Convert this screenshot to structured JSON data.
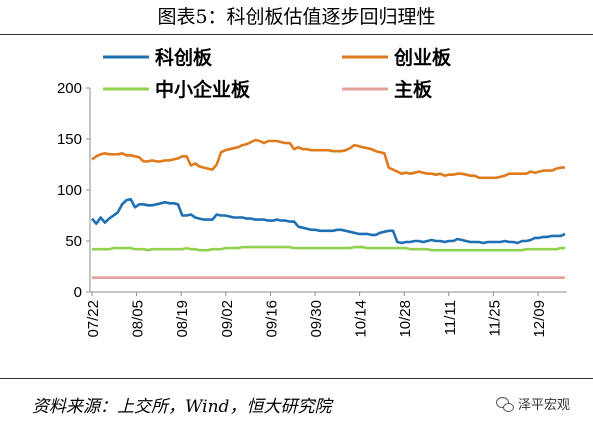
{
  "header": {
    "title": "图表5：科创板估值逐步回归理性"
  },
  "footer": {
    "source": "资料来源：上交所，Wind，恒大研究院",
    "brand": "泽平宏观",
    "brand_icon": "wechat-icon"
  },
  "chart_data": {
    "type": "line",
    "title": "",
    "xlabel": "",
    "ylabel": "",
    "ylim": [
      0,
      200
    ],
    "yticks": [
      0,
      50,
      100,
      150,
      200
    ],
    "x_tick_labels": [
      "07/22",
      "08/05",
      "08/19",
      "09/02",
      "09/16",
      "09/30",
      "10/14",
      "10/28",
      "11/11",
      "11/25",
      "12/09"
    ],
    "legend_position": "top",
    "grid": false,
    "series": [
      {
        "name": "科创板",
        "color": "#1f6fb4",
        "values": [
          72,
          67,
          73,
          68,
          72,
          75,
          78,
          86,
          90,
          91,
          83,
          86,
          86,
          85,
          85,
          86,
          87,
          88,
          87,
          87,
          86,
          75,
          75,
          76,
          73,
          72,
          71,
          71,
          71,
          76,
          75,
          75,
          74,
          73,
          73,
          73,
          72,
          72,
          71,
          71,
          71,
          70,
          70,
          71,
          70,
          70,
          69,
          69,
          64,
          63,
          62,
          61,
          61,
          60,
          60,
          60,
          60,
          61,
          61,
          60,
          59,
          58,
          57,
          57,
          57,
          56,
          56,
          58,
          59,
          60,
          60,
          49,
          48,
          49,
          49,
          50,
          50,
          49,
          50,
          51,
          50,
          50,
          49,
          50,
          50,
          52,
          51,
          50,
          49,
          49,
          49,
          48,
          49,
          49,
          49,
          49,
          50,
          49,
          49,
          48,
          50,
          50,
          51,
          53,
          53,
          54,
          54,
          55,
          55,
          55,
          57
        ]
      },
      {
        "name": "创业板",
        "color": "#e07b1d",
        "values": [
          130,
          133,
          135,
          136,
          135,
          135,
          135,
          136,
          134,
          134,
          133,
          132,
          128,
          128,
          129,
          128,
          128,
          129,
          129,
          130,
          131,
          133,
          133,
          124,
          126,
          123,
          122,
          121,
          120,
          125,
          137,
          139,
          140,
          141,
          142,
          144,
          145,
          147,
          149,
          148,
          146,
          148,
          148,
          148,
          147,
          146,
          146,
          140,
          142,
          140,
          140,
          139,
          139,
          139,
          139,
          139,
          138,
          138,
          138,
          139,
          141,
          144,
          143,
          142,
          141,
          140,
          138,
          137,
          136,
          122,
          120,
          118,
          116,
          117,
          116,
          117,
          118,
          117,
          116,
          116,
          115,
          116,
          114,
          115,
          115,
          116,
          116,
          115,
          114,
          114,
          112,
          112,
          112,
          112,
          112,
          113,
          114,
          116,
          116,
          116,
          116,
          116,
          118,
          117,
          118,
          119,
          119,
          119,
          121,
          122,
          122
        ]
      },
      {
        "name": "中小企业板",
        "color": "#92d050",
        "values": [
          42,
          42,
          42,
          42,
          42,
          43,
          43,
          43,
          43,
          43,
          42,
          42,
          42,
          41,
          42,
          42,
          42,
          42,
          42,
          42,
          42,
          42,
          43,
          42,
          42,
          41,
          41,
          41,
          42,
          42,
          42,
          43,
          43,
          43,
          43,
          44,
          44,
          44,
          44,
          44,
          44,
          44,
          44,
          44,
          44,
          44,
          44,
          43,
          43,
          43,
          43,
          43,
          43,
          43,
          43,
          43,
          43,
          43,
          43,
          43,
          43,
          44,
          44,
          44,
          43,
          43,
          43,
          43,
          43,
          43,
          43,
          43,
          43,
          43,
          42,
          42,
          42,
          42,
          42,
          41,
          41,
          41,
          41,
          41,
          41,
          41,
          41,
          41,
          41,
          41,
          41,
          41,
          41,
          41,
          41,
          41,
          41,
          41,
          41,
          41,
          41,
          42,
          42,
          42,
          42,
          42,
          42,
          42,
          42,
          43,
          43
        ]
      },
      {
        "name": "主板",
        "color": "#e5a19a",
        "values": [
          14,
          14,
          14,
          14,
          14,
          14,
          14,
          14,
          14,
          14,
          14,
          14,
          14,
          14,
          14,
          14,
          14,
          14,
          14,
          14,
          14,
          14,
          14,
          14,
          14,
          14,
          14,
          14,
          14,
          14,
          14,
          14,
          14,
          14,
          14,
          14,
          14,
          14,
          14,
          14,
          14,
          14,
          14,
          14,
          14,
          14,
          14,
          14,
          14,
          14,
          14,
          14,
          14,
          14,
          14,
          14,
          14,
          14,
          14,
          14,
          14,
          14,
          14,
          14,
          14,
          14,
          14,
          14,
          14,
          14,
          14,
          14,
          14,
          14,
          14,
          14,
          14,
          14,
          14,
          14,
          14,
          14,
          14,
          14,
          14,
          14,
          14,
          14,
          14,
          14,
          14,
          14,
          14,
          14,
          14,
          14,
          14,
          14,
          14,
          14,
          14,
          14,
          14,
          14,
          14,
          14,
          14,
          14,
          14,
          14,
          14
        ]
      }
    ]
  }
}
